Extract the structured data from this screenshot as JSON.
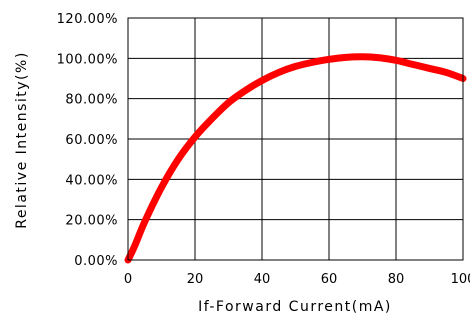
{
  "chart_data": {
    "type": "line",
    "title": "",
    "xlabel": "If-Forward Current(mA)",
    "ylabel": "Relative Intensity(%)",
    "xlim": [
      0,
      100
    ],
    "ylim": [
      0,
      120
    ],
    "x_ticks": [
      "0",
      "20",
      "40",
      "60",
      "80",
      "100"
    ],
    "y_ticks": [
      "0.00%",
      "20.00%",
      "40.00%",
      "60.00%",
      "80.00%",
      "100.00%",
      "120.00%"
    ],
    "grid": true,
    "legend": "none",
    "series": [
      {
        "color": "#ff0000",
        "x": [
          0,
          2,
          5,
          10,
          15,
          20,
          25,
          30,
          35,
          40,
          45,
          50,
          55,
          60,
          65,
          70,
          75,
          80,
          85,
          90,
          95,
          100
        ],
        "y": [
          0,
          7,
          19,
          36,
          50,
          61,
          70,
          78,
          84,
          89,
          93,
          96,
          98,
          99.5,
          100.5,
          100.8,
          100.3,
          99,
          97,
          95,
          93,
          90
        ]
      }
    ]
  }
}
